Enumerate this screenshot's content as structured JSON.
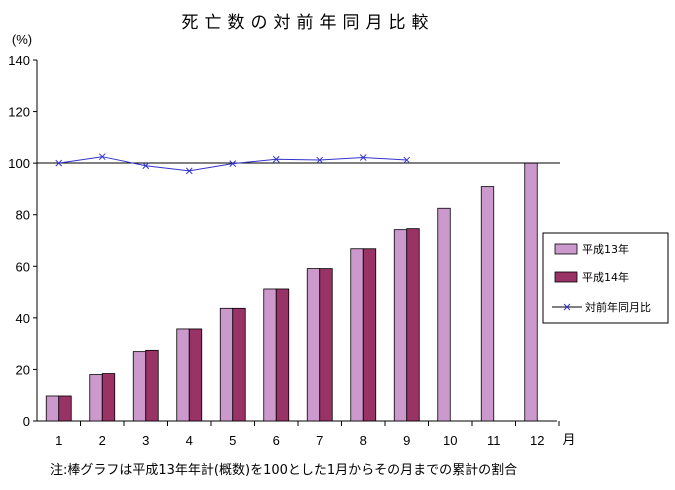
{
  "chart_data": {
    "type": "bar",
    "title": "死亡数の対前年同月比較",
    "ylabel": "(%)",
    "xlabel": "月",
    "categories": [
      "1",
      "2",
      "3",
      "4",
      "5",
      "6",
      "7",
      "8",
      "9",
      "10",
      "11",
      "12"
    ],
    "ylim": [
      0,
      140
    ],
    "yticks": [
      0,
      20,
      40,
      60,
      80,
      100,
      120,
      140
    ],
    "grid": false,
    "legend_position": "right",
    "series": [
      {
        "name": "平成13年",
        "kind": "bar",
        "color": "#cc99cc",
        "values": [
          9.7,
          18.0,
          26.9,
          35.7,
          43.7,
          51.2,
          59.1,
          66.8,
          74.2,
          82.5,
          90.9,
          100.0
        ]
      },
      {
        "name": "平成14年",
        "kind": "bar",
        "color": "#993366",
        "values": [
          9.7,
          18.4,
          27.4,
          35.7,
          43.7,
          51.2,
          59.1,
          66.8,
          74.6,
          null,
          null,
          null
        ]
      },
      {
        "name": "対前年同月比",
        "kind": "line",
        "color": "#3333cc",
        "marker": "x",
        "values": [
          100.0,
          102.5,
          99.0,
          97.0,
          99.8,
          101.5,
          101.2,
          102.2,
          101.2,
          null,
          null,
          null
        ]
      }
    ],
    "reference_line": 100,
    "note": "注:棒グラフは平成13年年計(概数)を100とした1月からその月までの累計の割合"
  }
}
